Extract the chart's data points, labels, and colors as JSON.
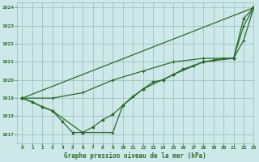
{
  "background_color": "#cce8e8",
  "grid_color": "#99bbbb",
  "line_color": "#2d6a2d",
  "title": "Graphe pression niveau de la mer (hPa)",
  "xlim": [
    -0.5,
    23
  ],
  "ylim": [
    1016.5,
    1024.3
  ],
  "yticks": [
    1017,
    1018,
    1019,
    1020,
    1021,
    1022,
    1023,
    1024
  ],
  "xticks": [
    0,
    1,
    2,
    3,
    4,
    5,
    6,
    7,
    8,
    9,
    10,
    11,
    12,
    13,
    14,
    15,
    16,
    17,
    18,
    19,
    20,
    21,
    22,
    23
  ],
  "series_hourly": {
    "x": [
      0,
      1,
      2,
      3,
      4,
      5,
      6,
      7,
      8,
      9,
      10,
      11,
      12,
      13,
      14,
      15,
      16,
      17,
      18,
      19,
      20,
      21,
      22,
      23
    ],
    "y": [
      1019.0,
      1018.8,
      1018.5,
      1018.3,
      1017.7,
      1017.1,
      1017.1,
      1017.4,
      1017.8,
      1018.1,
      1018.6,
      1019.1,
      1019.5,
      1019.9,
      1020.0,
      1020.3,
      1020.6,
      1020.8,
      1021.0,
      1021.1,
      1021.2,
      1021.2,
      1023.4,
      1024.0
    ]
  },
  "series_3h_upper": {
    "x": [
      0,
      3,
      6,
      9,
      12,
      15,
      18,
      21,
      22,
      23
    ],
    "y": [
      1019.0,
      1019.0,
      1019.3,
      1020.0,
      1020.5,
      1021.0,
      1021.2,
      1021.2,
      1022.2,
      1024.0
    ]
  },
  "series_3h_lower": {
    "x": [
      0,
      3,
      6,
      9,
      10,
      12,
      15,
      18,
      21,
      22,
      23
    ],
    "y": [
      1019.0,
      1018.3,
      1017.1,
      1017.1,
      1018.6,
      1019.5,
      1020.3,
      1021.0,
      1021.2,
      1023.0,
      1024.0
    ]
  },
  "series_straight": {
    "x": [
      0,
      23
    ],
    "y": [
      1019.0,
      1024.0
    ]
  }
}
